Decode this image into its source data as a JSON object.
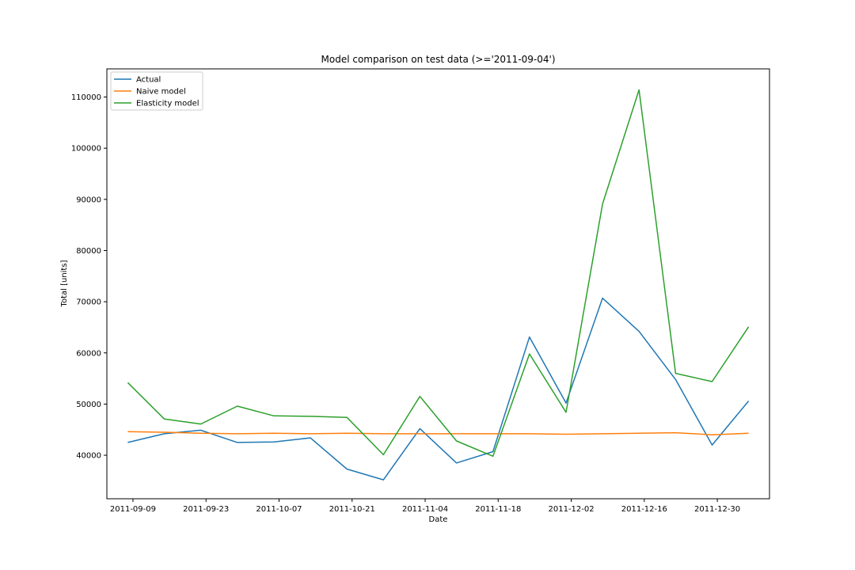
{
  "chart_data": {
    "type": "line",
    "title": "Model comparison on test data (>='2011-09-04')",
    "xlabel": "Date",
    "ylabel": "Total [units]",
    "x": [
      "2011-09-08",
      "2011-09-15",
      "2011-09-22",
      "2011-09-29",
      "2011-10-06",
      "2011-10-13",
      "2011-10-20",
      "2011-10-27",
      "2011-11-03",
      "2011-11-10",
      "2011-11-17",
      "2011-11-24",
      "2011-12-01",
      "2011-12-08",
      "2011-12-15",
      "2011-12-22",
      "2011-12-29",
      "2012-01-05"
    ],
    "series": [
      {
        "name": "Actual",
        "color": "#1f77b4",
        "values": [
          42500,
          44200,
          44900,
          42500,
          42600,
          43400,
          37300,
          35200,
          45200,
          38500,
          40700,
          63100,
          50200,
          70700,
          64200,
          54800,
          42000,
          50600
        ]
      },
      {
        "name": "Naive model",
        "color": "#ff7f0e",
        "values": [
          44600,
          44500,
          44300,
          44200,
          44300,
          44200,
          44300,
          44200,
          44200,
          44200,
          44200,
          44200,
          44100,
          44200,
          44300,
          44400,
          44000,
          44300
        ]
      },
      {
        "name": "Elasticity model",
        "color": "#2ca02c",
        "values": [
          54200,
          47100,
          46100,
          49600,
          47700,
          47600,
          47400,
          40100,
          51500,
          42800,
          39800,
          59800,
          48400,
          89100,
          111400,
          56000,
          54400,
          65100
        ]
      }
    ],
    "xticks": [
      "2011-09-09",
      "2011-09-23",
      "2011-10-07",
      "2011-10-21",
      "2011-11-04",
      "2011-11-18",
      "2011-12-02",
      "2011-12-16",
      "2011-12-30"
    ],
    "yticks": [
      40000,
      50000,
      60000,
      70000,
      80000,
      90000,
      100000,
      110000
    ],
    "xlim": [
      "2011-09-04",
      "2012-01-09"
    ],
    "ylim": [
      31500,
      115500
    ],
    "grid": false,
    "legend": "top-left"
  }
}
